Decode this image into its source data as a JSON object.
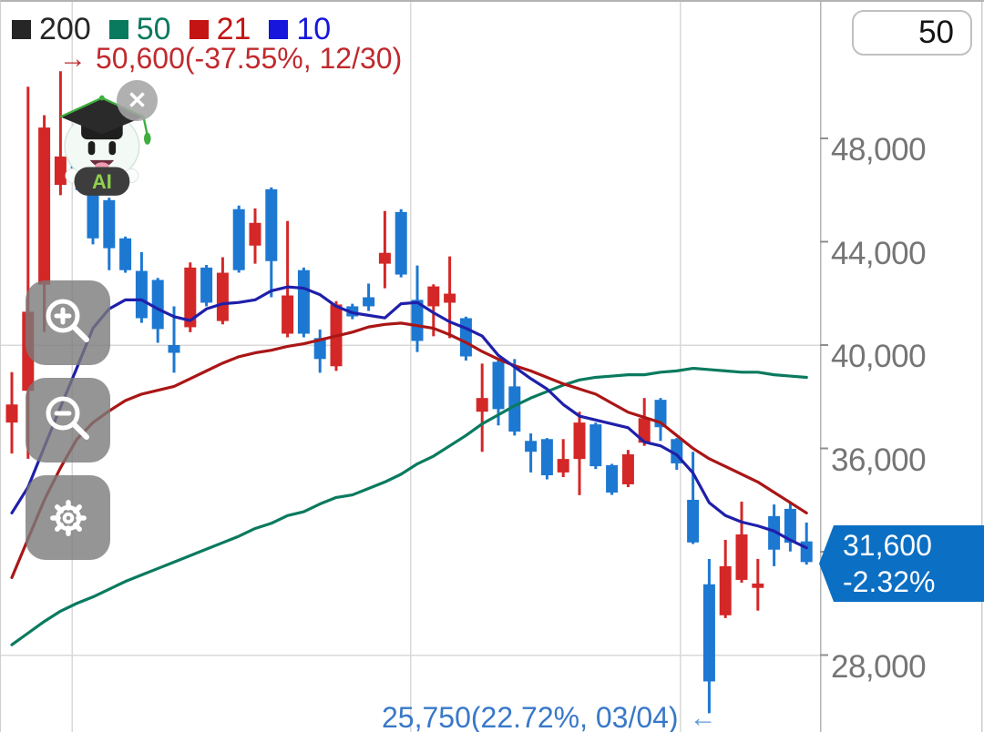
{
  "chart": {
    "interval_badge": "50",
    "legend": {
      "items": [
        {
          "period": "200",
          "color": "#262626"
        },
        {
          "period": "50",
          "color": "#0a7a5f"
        },
        {
          "period": "21",
          "color": "#c41414"
        },
        {
          "period": "10",
          "color": "#1616dc"
        }
      ]
    },
    "annotations": {
      "high": {
        "arrow": "→",
        "text": "50,600(-37.55%, 12/30)",
        "color": "#c02a2e"
      },
      "low": {
        "text": "25,750(22.72%, 03/04)",
        "arrow": "←",
        "text_color": "#3878c8",
        "arrow_color": "#5e9bd9"
      }
    },
    "price_tag": {
      "price": "31,600",
      "change": "-2.32%",
      "color": "#0b6fc4"
    },
    "y_axis": {
      "labels": [
        {
          "text": "48,000",
          "value": 48000
        },
        {
          "text": "44,000",
          "value": 44000
        },
        {
          "text": "40,000",
          "value": 40000
        },
        {
          "text": "36,000",
          "value": 36000
        },
        {
          "text": "28,000",
          "value": 28000
        }
      ],
      "tick_values": [
        48000,
        44000,
        40000,
        36000,
        32000,
        28000
      ],
      "text_color": "#757575"
    }
  },
  "mascot": {
    "label": "AI"
  },
  "icons": {
    "close": "✕"
  },
  "chart_data": {
    "type": "candlestick",
    "title": "",
    "y_axis_range": [
      24950,
      53300
    ],
    "gridline_prices": [
      40000,
      28000
    ],
    "up_color": "#d42727",
    "down_color": "#1d78d2",
    "period_high": {
      "price": 50600,
      "change_pct": -37.55,
      "date": "12/30"
    },
    "period_low": {
      "price": 25750,
      "change_pct": 22.72,
      "date": "03/04"
    },
    "last": {
      "price": 31600,
      "change_pct": -2.32
    },
    "open": [
      37000,
      38230,
      42340,
      46200,
      47300,
      46240,
      45610,
      44130,
      42870,
      42520,
      40000,
      40690,
      43000,
      40930,
      45260,
      43850,
      46030,
      40440,
      42900,
      40270,
      39180,
      41500,
      41850,
      43150,
      45150,
      41750,
      41500,
      41640,
      41040,
      37420,
      39350,
      38400,
      36290,
      36360,
      35070,
      35590,
      36930,
      35350,
      34610,
      36220,
      37880,
      36360,
      34010,
      30740,
      29540,
      30910,
      30600,
      33380,
      33660,
      32400
    ],
    "high": [
      38950,
      50000,
      48900,
      50600,
      47500,
      46400,
      45700,
      44200,
      43600,
      42600,
      41500,
      43200,
      43100,
      43400,
      45400,
      45290,
      46100,
      44800,
      43000,
      40600,
      41700,
      41600,
      42380,
      45190,
      45260,
      43080,
      42350,
      43430,
      41100,
      39280,
      39400,
      39460,
      36580,
      36400,
      36360,
      37420,
      37000,
      35400,
      35940,
      37950,
      37950,
      36400,
      35870,
      31720,
      32460,
      33940,
      31720,
      33830,
      33940,
      33130
    ],
    "low": [
      35800,
      35600,
      40510,
      45800,
      46000,
      43900,
      42900,
      42800,
      40860,
      40090,
      38930,
      40500,
      41500,
      40800,
      42800,
      43150,
      41850,
      40300,
      40300,
      38930,
      39000,
      41000,
      41320,
      42200,
      42620,
      39730,
      40340,
      40270,
      39400,
      35870,
      36890,
      36500,
      35070,
      34800,
      34890,
      34190,
      35200,
      34200,
      34500,
      36100,
      36290,
      35170,
      32300,
      25750,
      29430,
      30800,
      29720,
      31440,
      32010,
      31500
    ],
    "close": [
      37700,
      41290,
      48420,
      47300,
      46300,
      44130,
      43750,
      42900,
      41040,
      40620,
      39700,
      43000,
      41640,
      42800,
      42900,
      44730,
      43250,
      41920,
      40440,
      39460,
      41570,
      41110,
      41500,
      43570,
      42730,
      40160,
      42270,
      41990,
      39560,
      37950,
      37520,
      36650,
      35870,
      34960,
      35590,
      37000,
      35310,
      34290,
      35770,
      37170,
      36820,
      35420,
      32360,
      26980,
      31440,
      32670,
      30770,
      32080,
      32350,
      31600
    ],
    "moving_averages": [
      {
        "period": 10,
        "color": "#1f1faa",
        "values": [
          33500,
          34500,
          36050,
          37600,
          39100,
          40650,
          41400,
          41750,
          41750,
          41400,
          41100,
          40950,
          41400,
          41600,
          41650,
          41750,
          42100,
          42250,
          42200,
          41950,
          41500,
          41250,
          41150,
          41050,
          41600,
          41650,
          41250,
          40900,
          40650,
          40350,
          39600,
          39150,
          38700,
          38300,
          37700,
          37250,
          37100,
          36950,
          36800,
          36250,
          36100,
          35750,
          35050,
          33900,
          33400,
          33150,
          33000,
          32800,
          32450,
          32150
        ]
      },
      {
        "period": 21,
        "color": "#aa1616",
        "values": [
          31000,
          32500,
          34000,
          35250,
          36350,
          37000,
          37450,
          37850,
          38100,
          38250,
          38400,
          38700,
          39000,
          39300,
          39550,
          39700,
          39800,
          39950,
          40050,
          40200,
          40350,
          40500,
          40700,
          40800,
          40850,
          40750,
          40650,
          40400,
          40100,
          39750,
          39450,
          39200,
          39000,
          38750,
          38500,
          38300,
          38100,
          37750,
          37400,
          37200,
          37000,
          36500,
          36000,
          35600,
          35300,
          35000,
          34700,
          34300,
          33900,
          33500
        ]
      },
      {
        "period": 50,
        "color": "#0a7a5f",
        "values": [
          28400,
          28850,
          29300,
          29700,
          30000,
          30250,
          30550,
          30850,
          31100,
          31350,
          31600,
          31850,
          32100,
          32350,
          32600,
          32900,
          33100,
          33400,
          33550,
          33850,
          34100,
          34200,
          34450,
          34700,
          35000,
          35400,
          35700,
          36100,
          36500,
          36950,
          37300,
          37650,
          37950,
          38200,
          38450,
          38650,
          38750,
          38800,
          38850,
          38850,
          38950,
          39000,
          39100,
          39050,
          39000,
          38950,
          38950,
          38850,
          38800,
          38750
        ]
      },
      {
        "period": 200,
        "color": "#262626",
        "values": []
      }
    ]
  }
}
